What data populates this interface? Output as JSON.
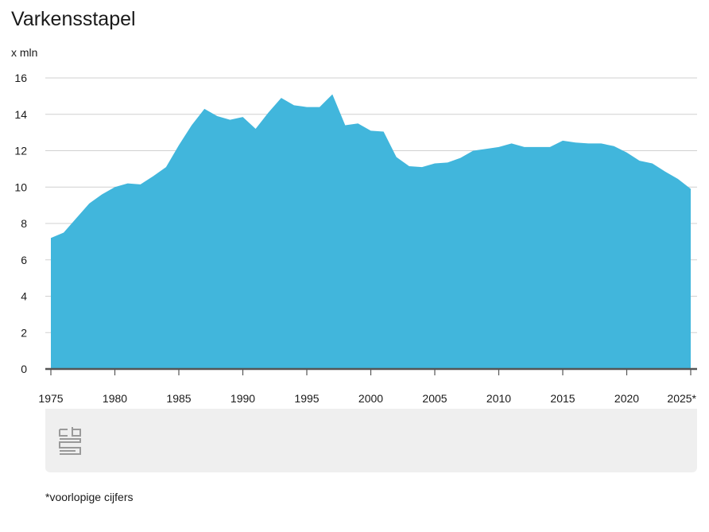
{
  "title": "Varkensstapel",
  "unit_label": "x mln",
  "footnote": "*voorlopige cijfers",
  "logo": "cbs-logo",
  "colors": {
    "area": "#41b6dc",
    "grid": "#d0d0d0",
    "axis": "#555555"
  },
  "chart_data": {
    "type": "area",
    "title": "Varkensstapel",
    "ylabel": "x mln",
    "xlabel": "",
    "ylim": [
      0,
      16
    ],
    "xlim": [
      1975,
      2025
    ],
    "yticks": [
      0,
      2,
      4,
      6,
      8,
      10,
      12,
      14,
      16
    ],
    "xtick_labels": [
      "1975",
      "1980",
      "1985",
      "1990",
      "1995",
      "2000",
      "2005",
      "2010",
      "2015",
      "2020",
      "2025*"
    ],
    "grid": true,
    "x": [
      1975,
      1976,
      1977,
      1978,
      1979,
      1980,
      1981,
      1982,
      1983,
      1984,
      1985,
      1986,
      1987,
      1988,
      1989,
      1990,
      1991,
      1992,
      1993,
      1994,
      1995,
      1996,
      1997,
      1998,
      1999,
      2000,
      2001,
      2002,
      2003,
      2004,
      2005,
      2006,
      2007,
      2008,
      2009,
      2010,
      2011,
      2012,
      2013,
      2014,
      2015,
      2016,
      2017,
      2018,
      2019,
      2020,
      2021,
      2022,
      2023,
      2024,
      2025
    ],
    "values": [
      7.2,
      7.5,
      8.3,
      9.1,
      9.6,
      10.0,
      10.2,
      10.15,
      10.6,
      11.1,
      12.3,
      13.4,
      14.3,
      13.9,
      13.7,
      13.85,
      13.2,
      14.1,
      14.9,
      14.5,
      14.4,
      14.4,
      15.1,
      13.4,
      13.5,
      13.1,
      13.05,
      11.65,
      11.15,
      11.1,
      11.3,
      11.35,
      11.6,
      12.0,
      12.1,
      12.2,
      12.4,
      12.2,
      12.2,
      12.2,
      12.55,
      12.45,
      12.4,
      12.4,
      12.25,
      11.9,
      11.45,
      11.3,
      10.85,
      10.45,
      9.9
    ]
  }
}
